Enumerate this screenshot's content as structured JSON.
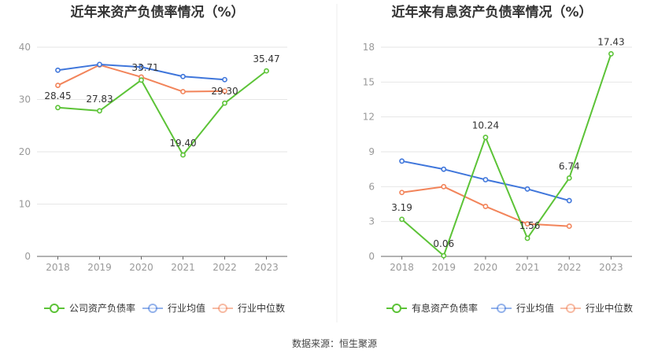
{
  "source_text": "数据来源：恒生聚源",
  "chart_data": [
    {
      "type": "line",
      "title": "近年来资产负债率情况（%）",
      "categories": [
        "2018",
        "2019",
        "2020",
        "2021",
        "2022",
        "2023"
      ],
      "ylim": [
        0,
        40
      ],
      "yticks": [
        0,
        10,
        20,
        30,
        40
      ],
      "grid": true,
      "legend_position": "bottom",
      "series": [
        {
          "name": "公司资产负债率",
          "color": "#5cc337",
          "values": [
            28.45,
            27.83,
            33.71,
            19.4,
            29.3,
            35.47
          ],
          "labels": [
            "28.45",
            "27.83",
            "33.71",
            "19.40",
            "29.30",
            "35.47"
          ]
        },
        {
          "name": "行业均值",
          "color": "#3f76db",
          "values": [
            35.6,
            36.7,
            36.2,
            34.4,
            33.8,
            null
          ]
        },
        {
          "name": "行业中位数",
          "color": "#f2845a",
          "values": [
            32.7,
            36.6,
            34.3,
            31.5,
            31.6,
            null
          ]
        }
      ]
    },
    {
      "type": "line",
      "title": "近年来有息资产负债率情况（%）",
      "categories": [
        "2018",
        "2019",
        "2020",
        "2021",
        "2022",
        "2023"
      ],
      "ylim": [
        0,
        18
      ],
      "yticks": [
        0,
        3,
        6,
        9,
        12,
        15,
        18
      ],
      "grid": true,
      "legend_position": "bottom",
      "series": [
        {
          "name": "有息资产负债率",
          "color": "#5cc337",
          "values": [
            3.19,
            0.06,
            10.24,
            1.56,
            6.74,
            17.43
          ],
          "labels": [
            "3.19",
            "0.06",
            "10.24",
            "1.56",
            "6.74",
            "17.43"
          ]
        },
        {
          "name": "行业均值",
          "color": "#3f76db",
          "values": [
            8.2,
            7.5,
            6.6,
            5.8,
            4.8,
            null
          ]
        },
        {
          "name": "行业中位数",
          "color": "#f2845a",
          "values": [
            5.5,
            6.0,
            4.3,
            2.8,
            2.6,
            null
          ]
        }
      ]
    }
  ]
}
